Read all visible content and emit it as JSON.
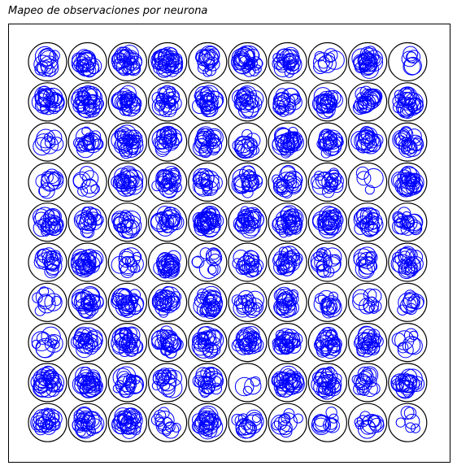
{
  "chart_data": {
    "type": "scatter",
    "title": "Mapeo de observaciones por neurona",
    "xlabel": "",
    "ylabel": "",
    "grid": false,
    "axes_ticks": false,
    "map_rows": 10,
    "map_cols": 10,
    "neuron_edge_color": "#000000",
    "observation_color": "#0000ff",
    "observations_per_neuron": [
      [
        12,
        18,
        25,
        28,
        16,
        24,
        20,
        8,
        26,
        6
      ],
      [
        22,
        26,
        24,
        22,
        24,
        20,
        18,
        20,
        22,
        24
      ],
      [
        8,
        18,
        28,
        20,
        22,
        14,
        24,
        20,
        16,
        20
      ],
      [
        10,
        8,
        20,
        22,
        16,
        18,
        18,
        18,
        4,
        24
      ],
      [
        20,
        18,
        16,
        18,
        30,
        22,
        26,
        22,
        20,
        18
      ],
      [
        16,
        24,
        12,
        22,
        10,
        18,
        22,
        16,
        12,
        20
      ],
      [
        8,
        22,
        24,
        20,
        24,
        14,
        20,
        14,
        10,
        10
      ],
      [
        10,
        20,
        24,
        22,
        22,
        24,
        24,
        22,
        22,
        8
      ],
      [
        24,
        24,
        18,
        16,
        22,
        4,
        26,
        24,
        16,
        20
      ],
      [
        20,
        22,
        24,
        12,
        22,
        14,
        10,
        10,
        12,
        6
      ]
    ]
  }
}
